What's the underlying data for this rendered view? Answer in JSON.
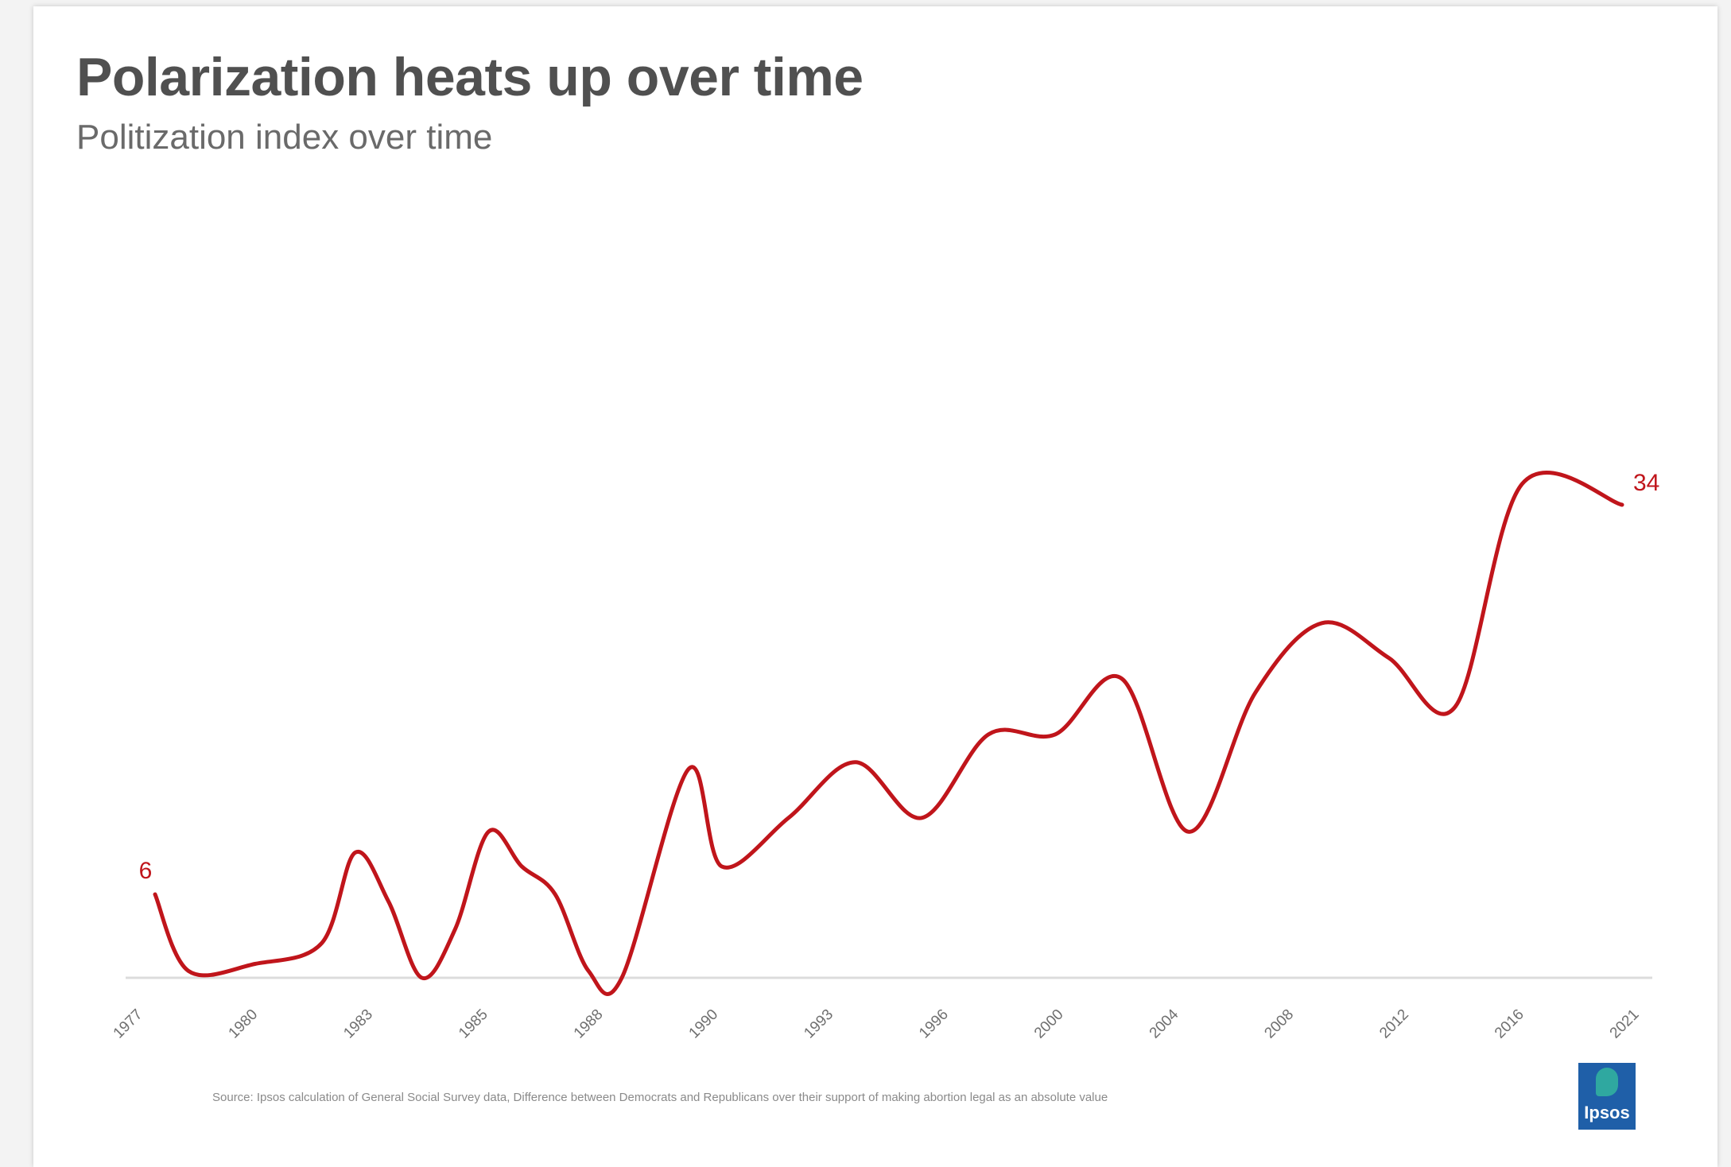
{
  "header": {
    "title": "Polarization heats up over time",
    "subtitle": "Politization index over time"
  },
  "footer": {
    "source": "Source: Ipsos calculation of General Social Survey data, Difference between Democrats and Republicans over their support of making abortion legal as an absolute value",
    "logo_text": "Ipsos"
  },
  "colors": {
    "series": "#c0151b",
    "axis": "#dcdcdc",
    "tick_label": "#6f6f6f",
    "brand": "#1f5fa8"
  },
  "chart_data": {
    "type": "line",
    "title": "Polarization heats up over time",
    "subtitle": "Politization index over time",
    "xlabel": "",
    "ylabel": "",
    "grid": false,
    "legend": "none",
    "tick_labels": [
      "1977",
      "1980",
      "1983",
      "1985",
      "1988",
      "1990",
      "1993",
      "1996",
      "2000",
      "2004",
      "2008",
      "2012",
      "2016",
      "2021"
    ],
    "x": [
      1977,
      1978,
      1980,
      1982,
      1983,
      1984,
      1985,
      1986,
      1987,
      1988,
      1989,
      1990,
      1991,
      1993,
      1994,
      1996,
      1998,
      2000,
      2002,
      2004,
      2006,
      2008,
      2010,
      2012,
      2014,
      2016,
      2018,
      2021
    ],
    "series": [
      {
        "values": [
          6,
          0.5,
          1,
          2.5,
          9,
          5.5,
          0,
          3.5,
          10.5,
          8,
          6,
          0.5,
          0,
          15,
          8,
          11.5,
          15.5,
          11.5,
          17.5,
          17.5,
          21.5,
          10.5,
          20.5,
          25.5,
          23,
          19.5,
          35.5,
          34
        ]
      }
    ],
    "data_labels": [
      {
        "x": 1977,
        "text": "6"
      },
      {
        "x": 2021,
        "text": "34"
      }
    ],
    "ylim": [
      0,
      40
    ]
  }
}
